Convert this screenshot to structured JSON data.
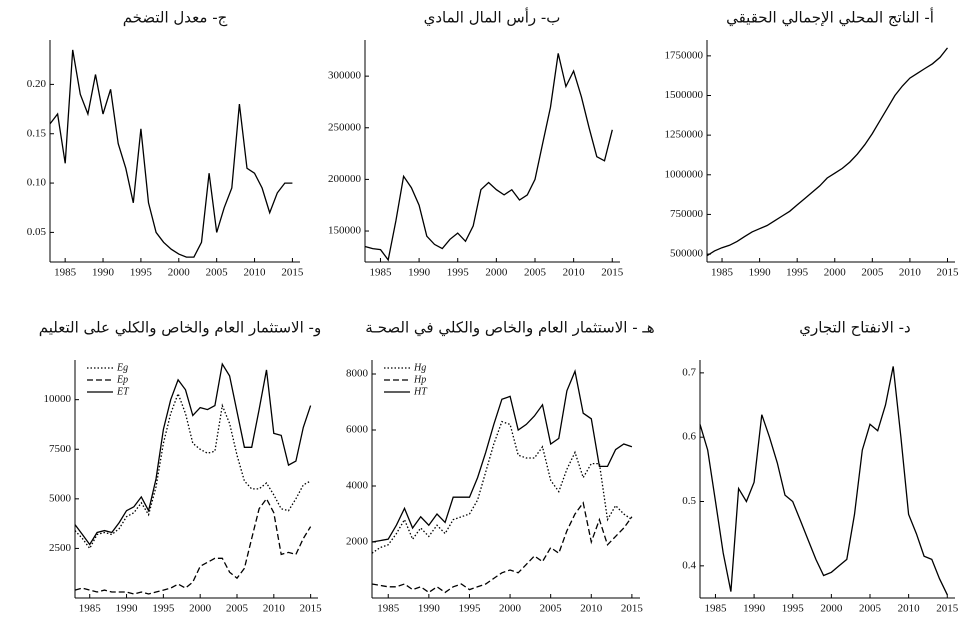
{
  "chart_data": [
    {
      "type": "line",
      "title": "أ- الناتج المحلي الإجمالي الحقيقي",
      "x": [
        1983,
        1984,
        1985,
        1986,
        1987,
        1988,
        1989,
        1990,
        1991,
        1992,
        1993,
        1994,
        1995,
        1996,
        1997,
        1998,
        1999,
        2000,
        2001,
        2002,
        2003,
        2004,
        2005,
        2006,
        2007,
        2008,
        2009,
        2010,
        2011,
        2012,
        2013,
        2014,
        2015
      ],
      "values": [
        490000,
        520000,
        540000,
        555000,
        580000,
        610000,
        640000,
        660000,
        680000,
        710000,
        740000,
        770000,
        810000,
        850000,
        890000,
        930000,
        980000,
        1010000,
        1040000,
        1080000,
        1130000,
        1190000,
        1260000,
        1340000,
        1420000,
        1500000,
        1560000,
        1610000,
        1640000,
        1670000,
        1700000,
        1740000,
        1800000
      ],
      "color": "#000000",
      "xlim": [
        1983,
        2016
      ],
      "ylim": [
        450000,
        1850000
      ],
      "xticks": [
        1985,
        1990,
        1995,
        2000,
        2005,
        2010,
        2015
      ],
      "yticks": [
        500000,
        750000,
        1000000,
        1250000,
        1500000,
        1750000
      ]
    },
    {
      "type": "line",
      "title": "ب- رأس المال المادي",
      "x": [
        1983,
        1984,
        1985,
        1986,
        1987,
        1988,
        1989,
        1990,
        1991,
        1992,
        1993,
        1994,
        1995,
        1996,
        1997,
        1998,
        1999,
        2000,
        2001,
        2002,
        2003,
        2004,
        2005,
        2006,
        2007,
        2008,
        2009,
        2010,
        2011,
        2012,
        2013,
        2014,
        2015
      ],
      "values": [
        135000,
        133000,
        132000,
        122000,
        160000,
        203000,
        192000,
        175000,
        145000,
        137000,
        133000,
        142000,
        148000,
        140000,
        155000,
        190000,
        197000,
        190000,
        185000,
        190000,
        180000,
        185000,
        200000,
        235000,
        270000,
        322000,
        290000,
        305000,
        280000,
        250000,
        222000,
        218000,
        248000
      ],
      "color": "#000000",
      "xlim": [
        1983,
        2016
      ],
      "ylim": [
        120000,
        335000
      ],
      "xticks": [
        1985,
        1990,
        1995,
        2000,
        2005,
        2010,
        2015
      ],
      "yticks": [
        150000,
        200000,
        250000,
        300000
      ]
    },
    {
      "type": "line",
      "title": "ج- معدل التضخم",
      "x": [
        1983,
        1984,
        1985,
        1986,
        1987,
        1988,
        1989,
        1990,
        1991,
        1992,
        1993,
        1994,
        1995,
        1996,
        1997,
        1998,
        1999,
        2000,
        2001,
        2002,
        2003,
        2004,
        2005,
        2006,
        2007,
        2008,
        2009,
        2010,
        2011,
        2012,
        2013,
        2014,
        2015
      ],
      "values": [
        0.16,
        0.17,
        0.12,
        0.235,
        0.19,
        0.17,
        0.21,
        0.17,
        0.195,
        0.14,
        0.115,
        0.08,
        0.155,
        0.08,
        0.05,
        0.04,
        0.033,
        0.028,
        0.025,
        0.025,
        0.04,
        0.11,
        0.05,
        0.075,
        0.095,
        0.18,
        0.115,
        0.11,
        0.095,
        0.07,
        0.09,
        0.1,
        0.1
      ],
      "color": "#000000",
      "xlim": [
        1983,
        2016
      ],
      "ylim": [
        0.02,
        0.245
      ],
      "xticks": [
        1985,
        1990,
        1995,
        2000,
        2005,
        2010,
        2015
      ],
      "yticks": [
        0.05,
        {
          "value": 0.1,
          "label": "0.10"
        },
        0.15,
        {
          "value": 0.2,
          "label": "0.20"
        }
      ]
    },
    {
      "type": "line",
      "title": "د- الانفتاح التجاري",
      "x": [
        1983,
        1984,
        1985,
        1986,
        1987,
        1988,
        1989,
        1990,
        1991,
        1992,
        1993,
        1994,
        1995,
        1996,
        1997,
        1998,
        1999,
        2000,
        2001,
        2002,
        2003,
        2004,
        2005,
        2006,
        2007,
        2008,
        2009,
        2010,
        2011,
        2012,
        2013,
        2014,
        2015
      ],
      "values": [
        0.62,
        0.58,
        0.5,
        0.42,
        0.36,
        0.52,
        0.5,
        0.53,
        0.635,
        0.6,
        0.56,
        0.51,
        0.5,
        0.47,
        0.44,
        0.41,
        0.385,
        0.39,
        0.4,
        0.41,
        0.48,
        0.58,
        0.62,
        0.61,
        0.65,
        0.71,
        0.6,
        0.48,
        0.45,
        0.415,
        0.41,
        0.38,
        0.355
      ],
      "color": "#000000",
      "xlim": [
        1983,
        2016
      ],
      "ylim": [
        0.35,
        0.72
      ],
      "xticks": [
        1985,
        1990,
        1995,
        2000,
        2005,
        2010,
        2015
      ],
      "yticks": [
        0.4,
        0.5,
        0.6,
        0.7
      ]
    },
    {
      "type": "line",
      "title": "هـ - الاستثمار العام والخاص والكلي في الصحـة",
      "x": [
        1983,
        1984,
        1985,
        1986,
        1987,
        1988,
        1989,
        1990,
        1991,
        1992,
        1993,
        1994,
        1995,
        1996,
        1997,
        1998,
        1999,
        2000,
        2001,
        2002,
        2003,
        2004,
        2005,
        2006,
        2007,
        2008,
        2009,
        2010,
        2011,
        2012,
        2013,
        2014,
        2015
      ],
      "series": [
        {
          "name": "Hg",
          "color": "#000000",
          "dash": "dotted",
          "values": [
            1600,
            1800,
            1900,
            2300,
            2800,
            2100,
            2500,
            2200,
            2600,
            2300,
            2800,
            2900,
            3000,
            3500,
            4500,
            5500,
            6300,
            6200,
            5100,
            5000,
            5000,
            5400,
            4200,
            3800,
            4600,
            5200,
            4300,
            4800,
            4800,
            2800,
            3300,
            3000,
            2800
          ]
        },
        {
          "name": "Hp",
          "color": "#000000",
          "dash": "dashed",
          "values": [
            500,
            450,
            400,
            400,
            500,
            300,
            400,
            200,
            400,
            200,
            400,
            500,
            300,
            400,
            500,
            700,
            900,
            1000,
            900,
            1200,
            1500,
            1300,
            1800,
            1600,
            2400,
            3000,
            3400,
            2000,
            2800,
            1900,
            2200,
            2500,
            2900
          ]
        },
        {
          "name": "HT",
          "color": "#000000",
          "dash": "solid",
          "values": [
            2000,
            2050,
            2100,
            2600,
            3200,
            2500,
            2900,
            2600,
            3000,
            2700,
            3600,
            3600,
            3600,
            4300,
            5200,
            6200,
            7100,
            7200,
            6000,
            6200,
            6500,
            6900,
            5500,
            5700,
            7400,
            8100,
            6600,
            6400,
            4700,
            4700,
            5300,
            5500,
            5400
          ]
        }
      ],
      "legend": "upper left",
      "xlim": [
        1983,
        2016
      ],
      "ylim": [
        0,
        8500
      ],
      "xticks": [
        1985,
        1990,
        1995,
        2000,
        2005,
        2010,
        2015
      ],
      "yticks": [
        2000,
        4000,
        6000,
        8000
      ]
    },
    {
      "type": "line",
      "title": "و- الاستثمار العام والخاص والكلي على التعليم",
      "x": [
        1983,
        1984,
        1985,
        1986,
        1987,
        1988,
        1989,
        1990,
        1991,
        1992,
        1993,
        1994,
        1995,
        1996,
        1997,
        1998,
        1999,
        2000,
        2001,
        2002,
        2003,
        2004,
        2005,
        2006,
        2007,
        2008,
        2009,
        2010,
        2011,
        2012,
        2013,
        2014,
        2015
      ],
      "series": [
        {
          "name": "Eg",
          "color": "#000000",
          "dash": "dotted",
          "values": [
            3400,
            3000,
            2500,
            3200,
            3300,
            3200,
            3500,
            4100,
            4300,
            4800,
            4200,
            5600,
            7800,
            9300,
            10300,
            9300,
            7800,
            7500,
            7300,
            7400,
            9700,
            8800,
            7200,
            5900,
            5500,
            5500,
            5800,
            5200,
            4500,
            4400,
            5000,
            5700,
            5900
          ]
        },
        {
          "name": "Ep",
          "color": "#000000",
          "dash": "dashed",
          "values": [
            400,
            500,
            400,
            300,
            400,
            300,
            300,
            300,
            200,
            300,
            200,
            300,
            400,
            500,
            700,
            500,
            800,
            1600,
            1800,
            2000,
            2000,
            1300,
            1000,
            1500,
            3000,
            4500,
            5000,
            4300,
            2200,
            2300,
            2200,
            3000,
            3600
          ]
        },
        {
          "name": "ET",
          "color": "#000000",
          "dash": "solid",
          "values": [
            3700,
            3200,
            2700,
            3300,
            3400,
            3300,
            3800,
            4400,
            4600,
            5100,
            4400,
            6000,
            8500,
            10000,
            11000,
            10500,
            9200,
            9600,
            9500,
            9700,
            11800,
            11200,
            9400,
            7600,
            7600,
            9500,
            11500,
            8300,
            8200,
            6700,
            6900,
            8600,
            9700
          ]
        }
      ],
      "legend": "upper left",
      "xlim": [
        1983,
        2016
      ],
      "ylim": [
        0,
        12000
      ],
      "xticks": [
        1985,
        1990,
        1995,
        2000,
        2005,
        2010,
        2015
      ],
      "yticks": [
        2500,
        5000,
        7500,
        10000
      ]
    }
  ]
}
